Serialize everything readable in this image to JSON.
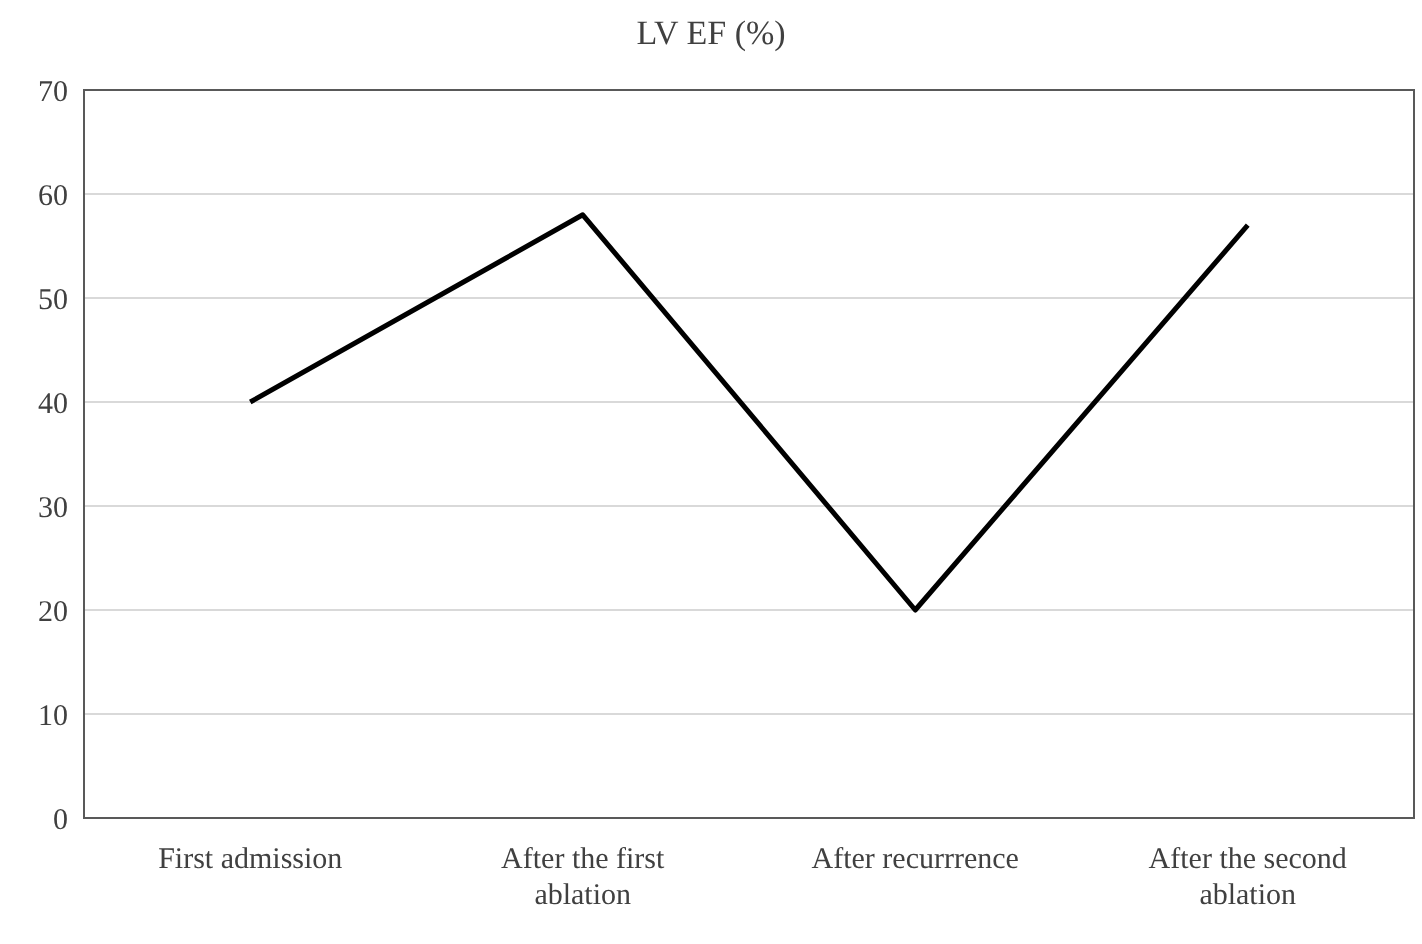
{
  "chart_data": {
    "type": "line",
    "title": "LV EF (%)",
    "categories": [
      "First admission",
      "After the first ablation",
      "After recurrrence",
      "After the second ablation"
    ],
    "series": [
      {
        "color": "#000000",
        "values": [
          40,
          58,
          20,
          57
        ]
      }
    ],
    "ylim": [
      0,
      70
    ],
    "yticks": [
      0,
      10,
      20,
      30,
      40,
      50,
      60,
      70
    ],
    "grid": "y",
    "marker": "none",
    "line_style": "solid"
  }
}
